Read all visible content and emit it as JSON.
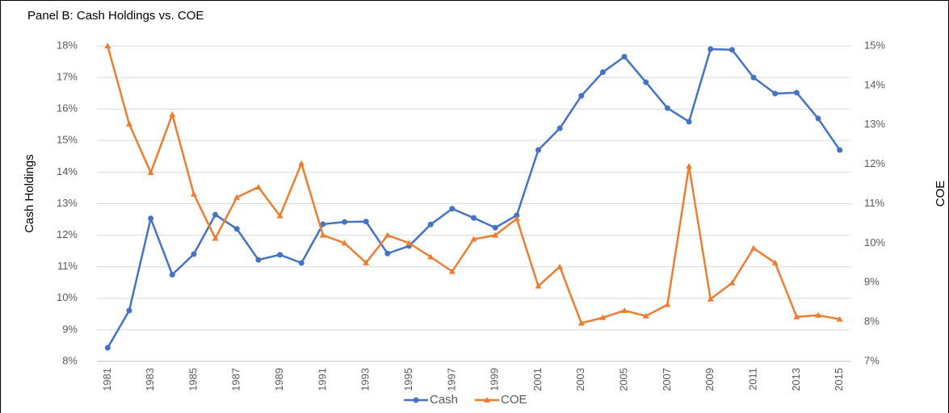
{
  "chart_data": {
    "type": "line",
    "title": "Panel B:  Cash Holdings vs. COE",
    "y_label": "Cash Holdings",
    "y2_label": "COE",
    "categories": [
      "1981",
      null,
      "1983",
      null,
      "1985",
      null,
      "1987",
      null,
      "1989",
      null,
      "1991",
      null,
      "1993",
      null,
      "1995",
      null,
      "1997",
      null,
      "1999",
      null,
      "2001",
      null,
      "2003",
      null,
      "2005",
      null,
      "2007",
      null,
      "2009",
      null,
      "2011",
      null,
      "2013",
      null,
      "2015"
    ],
    "series": [
      {
        "name": "Cash",
        "color": "#4472c4",
        "marker": "circle",
        "values": [
          8.43,
          9.61,
          12.53,
          10.75,
          11.4,
          12.65,
          12.2,
          11.22,
          11.38,
          11.12,
          12.35,
          12.42,
          12.43,
          11.42,
          11.66,
          12.34,
          12.84,
          12.55,
          12.24,
          12.63,
          14.7,
          15.39,
          16.42,
          17.17,
          17.66,
          16.85,
          16.03,
          15.6,
          17.9,
          17.88,
          17.0,
          16.49,
          16.52,
          15.7,
          14.7
        ]
      },
      {
        "name": "COE",
        "color": "#ed7d31",
        "marker": "triangle",
        "axis": "y2",
        "values": [
          15.0,
          13.02,
          11.79,
          13.26,
          11.24,
          10.12,
          11.16,
          11.42,
          10.69,
          12.02,
          10.2,
          10.0,
          9.5,
          10.2,
          10.0,
          9.65,
          9.28,
          10.1,
          10.2,
          10.62,
          8.91,
          9.4,
          7.97,
          8.11,
          8.29,
          8.15,
          8.44,
          11.95,
          8.58,
          8.99,
          9.87,
          9.5,
          8.13,
          8.17,
          8.07
        ]
      }
    ],
    "ylim": [
      8,
      18
    ],
    "yticks": [
      {
        "value": 8,
        "label": "8%"
      },
      {
        "value": 9,
        "label": "9%"
      },
      {
        "value": 10,
        "label": "10%"
      },
      {
        "value": 11,
        "label": "11%"
      },
      {
        "value": 12,
        "label": "12%"
      },
      {
        "value": 13,
        "label": "13%"
      },
      {
        "value": 14,
        "label": "14%"
      },
      {
        "value": 15,
        "label": "15%"
      },
      {
        "value": 16,
        "label": "16%"
      },
      {
        "value": 17,
        "label": "17%"
      },
      {
        "value": 18,
        "label": "18%"
      }
    ],
    "y2lim": [
      7,
      15
    ],
    "y2ticks": [
      {
        "value": 7,
        "label": "7%"
      },
      {
        "value": 8,
        "label": "8%"
      },
      {
        "value": 9,
        "label": "9%"
      },
      {
        "value": 10,
        "label": "10%"
      },
      {
        "value": 11,
        "label": "11%"
      },
      {
        "value": 12,
        "label": "12%"
      },
      {
        "value": 13,
        "label": "13%"
      },
      {
        "value": 14,
        "label": "14%"
      },
      {
        "value": 15,
        "label": "15%"
      }
    ],
    "grid": true,
    "legend": "bottom"
  }
}
